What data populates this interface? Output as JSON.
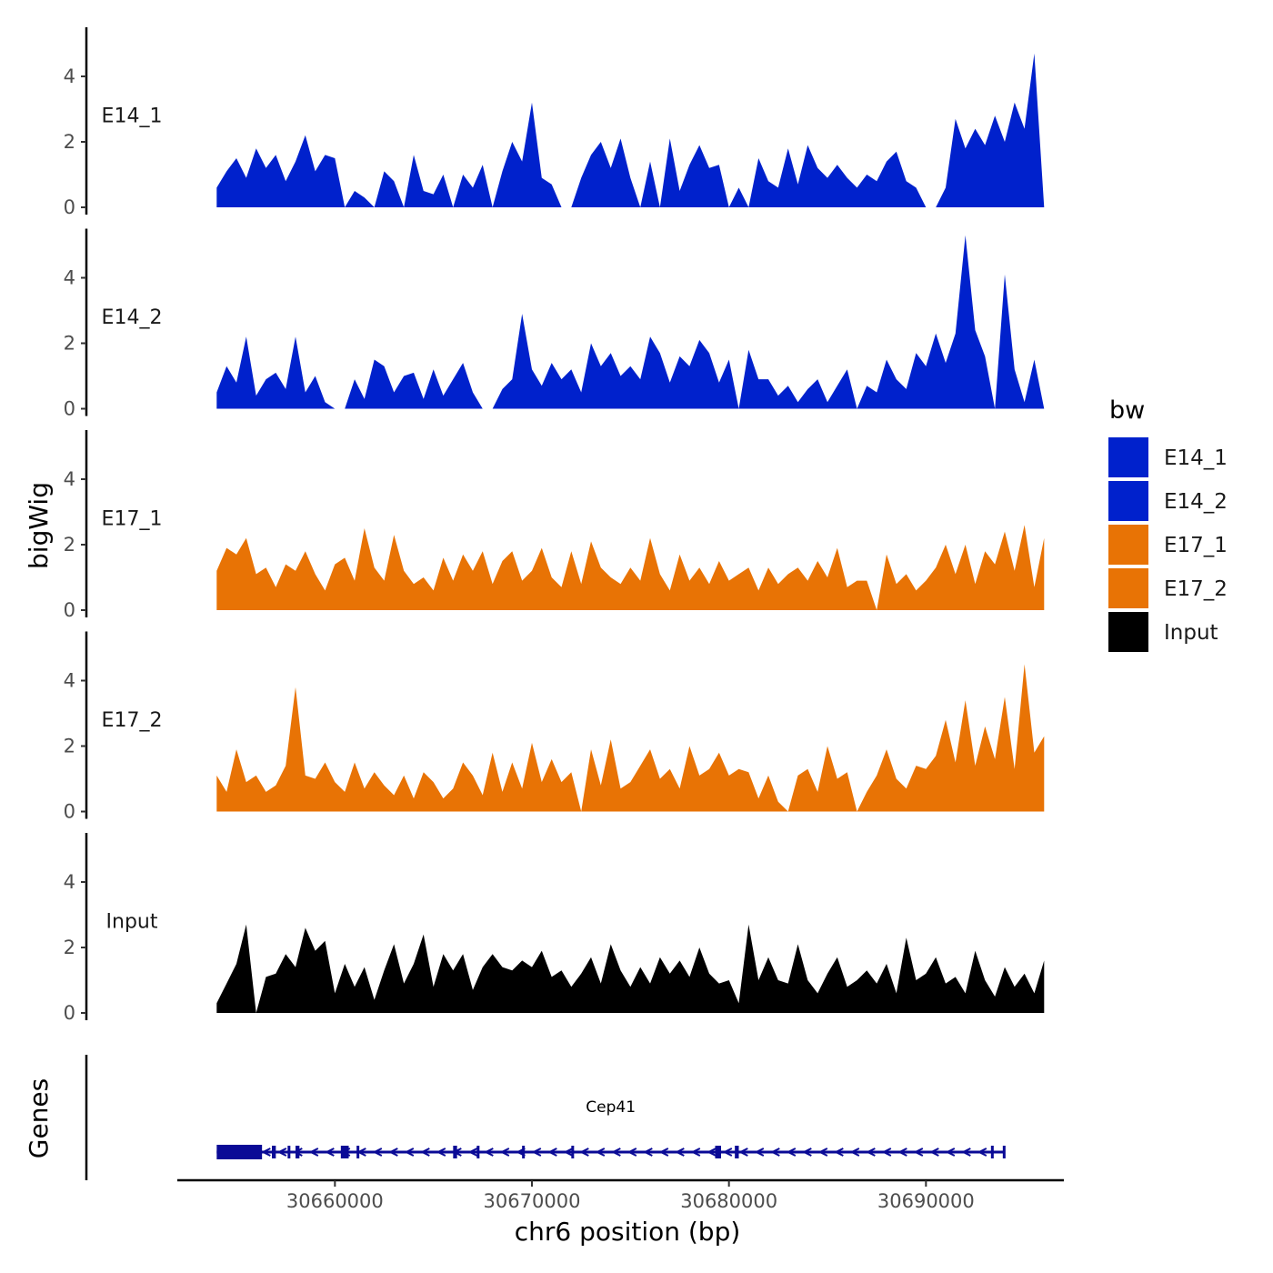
{
  "chart_data": {
    "type": "area",
    "title": "",
    "xlabel": "chr6 position (bp)",
    "ylabel": "bigWig",
    "gene_panel_label": "Genes",
    "xlim": [
      30652000,
      30697000
    ],
    "x_ticks": [
      30660000,
      30670000,
      30680000,
      30690000
    ],
    "x_tick_labels": [
      "30660000",
      "30670000",
      "30680000",
      "30690000"
    ],
    "ylim": [
      0,
      5.5
    ],
    "y_ticks": [
      0,
      2,
      4
    ],
    "y_tick_labels": [
      "0",
      "2",
      "4"
    ],
    "legend": {
      "title": "bw",
      "entries": [
        {
          "label": "E14_1",
          "color": "#0021CC"
        },
        {
          "label": "E14_2",
          "color": "#0021CC"
        },
        {
          "label": "E17_1",
          "color": "#E87305"
        },
        {
          "label": "E17_2",
          "color": "#E87305"
        },
        {
          "label": "Input",
          "color": "#000000"
        }
      ]
    },
    "x": [
      30654000,
      30654500,
      30655000,
      30655500,
      30656000,
      30656500,
      30657000,
      30657500,
      30658000,
      30658500,
      30659000,
      30659500,
      30660000,
      30660500,
      30661000,
      30661500,
      30662000,
      30662500,
      30663000,
      30663500,
      30664000,
      30664500,
      30665000,
      30665500,
      30666000,
      30666500,
      30667000,
      30667500,
      30668000,
      30668500,
      30669000,
      30669500,
      30670000,
      30670500,
      30671000,
      30671500,
      30672000,
      30672500,
      30673000,
      30673500,
      30674000,
      30674500,
      30675000,
      30675500,
      30676000,
      30676500,
      30677000,
      30677500,
      30678000,
      30678500,
      30679000,
      30679500,
      30680000,
      30680500,
      30681000,
      30681500,
      30682000,
      30682500,
      30683000,
      30683500,
      30684000,
      30684500,
      30685000,
      30685500,
      30686000,
      30686500,
      30687000,
      30687500,
      30688000,
      30688500,
      30689000,
      30689500,
      30690000,
      30690500,
      30691000,
      30691500,
      30692000,
      30692500,
      30693000,
      30693500,
      30694000,
      30694500,
      30695000,
      30695500,
      30696000
    ],
    "series": [
      {
        "name": "E14_1",
        "values": [
          0.6,
          1.1,
          1.5,
          0.9,
          1.8,
          1.2,
          1.6,
          0.8,
          1.4,
          2.2,
          1.1,
          1.6,
          1.5,
          0.0,
          0.5,
          0.3,
          0.0,
          1.1,
          0.8,
          0.0,
          1.6,
          0.5,
          0.4,
          1.0,
          0.0,
          1.0,
          0.6,
          1.3,
          0.0,
          1.1,
          2.0,
          1.4,
          3.2,
          0.9,
          0.7,
          0.0,
          0.0,
          0.9,
          1.6,
          2.0,
          1.2,
          2.1,
          0.9,
          0.0,
          1.4,
          0.0,
          2.1,
          0.5,
          1.3,
          1.9,
          1.2,
          1.3,
          0.0,
          0.6,
          0.0,
          1.5,
          0.8,
          0.6,
          1.8,
          0.7,
          1.9,
          1.2,
          0.9,
          1.3,
          0.9,
          0.6,
          1.0,
          0.8,
          1.4,
          1.7,
          0.8,
          0.6,
          0.0,
          0.0,
          0.6,
          2.7,
          1.8,
          2.4,
          1.9,
          2.8,
          2.0,
          3.2,
          2.4,
          4.7,
          0.0
        ]
      },
      {
        "name": "E14_2",
        "values": [
          0.5,
          1.3,
          0.8,
          2.2,
          0.4,
          0.9,
          1.1,
          0.6,
          2.2,
          0.5,
          1.0,
          0.2,
          0.0,
          0.0,
          0.9,
          0.3,
          1.5,
          1.3,
          0.5,
          1.0,
          1.1,
          0.3,
          1.2,
          0.4,
          0.9,
          1.4,
          0.5,
          0.0,
          0.0,
          0.6,
          0.9,
          2.9,
          1.2,
          0.7,
          1.4,
          0.9,
          1.2,
          0.5,
          2.0,
          1.3,
          1.7,
          1.0,
          1.3,
          0.9,
          2.2,
          1.7,
          0.8,
          1.6,
          1.3,
          2.1,
          1.7,
          0.8,
          1.5,
          0.0,
          1.8,
          0.9,
          0.9,
          0.4,
          0.7,
          0.2,
          0.6,
          0.9,
          0.2,
          0.7,
          1.2,
          0.0,
          0.7,
          0.5,
          1.5,
          0.9,
          0.6,
          1.7,
          1.3,
          2.3,
          1.4,
          2.3,
          5.3,
          2.4,
          1.6,
          0.0,
          4.1,
          1.2,
          0.2,
          1.5,
          0.0
        ]
      },
      {
        "name": "E17_1",
        "values": [
          1.2,
          1.9,
          1.7,
          2.2,
          1.1,
          1.3,
          0.7,
          1.4,
          1.2,
          1.8,
          1.1,
          0.6,
          1.4,
          1.6,
          0.9,
          2.5,
          1.3,
          0.9,
          2.3,
          1.2,
          0.8,
          1.0,
          0.6,
          1.6,
          0.9,
          1.7,
          1.2,
          1.8,
          0.8,
          1.5,
          1.8,
          0.9,
          1.2,
          1.9,
          1.0,
          0.7,
          1.8,
          0.8,
          2.1,
          1.3,
          1.0,
          0.8,
          1.3,
          0.9,
          2.2,
          1.1,
          0.6,
          1.7,
          0.9,
          1.3,
          0.8,
          1.5,
          0.9,
          1.1,
          1.3,
          0.6,
          1.3,
          0.8,
          1.1,
          1.3,
          0.9,
          1.5,
          1.0,
          1.9,
          0.7,
          0.9,
          0.9,
          0.0,
          1.7,
          0.8,
          1.1,
          0.6,
          0.9,
          1.3,
          2.0,
          1.1,
          2.0,
          0.8,
          1.8,
          1.4,
          2.4,
          1.2,
          2.6,
          0.7,
          2.2
        ]
      },
      {
        "name": "E17_2",
        "values": [
          1.1,
          0.6,
          1.9,
          0.9,
          1.1,
          0.6,
          0.8,
          1.4,
          3.8,
          1.1,
          1.0,
          1.5,
          0.9,
          0.6,
          1.5,
          0.7,
          1.2,
          0.8,
          0.5,
          1.1,
          0.4,
          1.2,
          0.9,
          0.4,
          0.7,
          1.5,
          1.1,
          0.5,
          1.8,
          0.6,
          1.5,
          0.7,
          2.1,
          0.9,
          1.6,
          0.9,
          1.2,
          0.0,
          1.9,
          0.8,
          2.2,
          0.7,
          0.9,
          1.4,
          1.9,
          1.0,
          1.3,
          0.7,
          2.0,
          1.1,
          1.3,
          1.8,
          1.1,
          1.3,
          1.2,
          0.4,
          1.1,
          0.3,
          0.0,
          1.1,
          1.3,
          0.6,
          2.0,
          1.0,
          1.2,
          0.0,
          0.6,
          1.1,
          1.9,
          1.0,
          0.7,
          1.4,
          1.3,
          1.7,
          2.8,
          1.5,
          3.4,
          1.4,
          2.6,
          1.6,
          3.5,
          1.3,
          4.5,
          1.8,
          2.3
        ]
      },
      {
        "name": "Input",
        "values": [
          0.3,
          0.9,
          1.5,
          2.7,
          0.0,
          1.1,
          1.2,
          1.8,
          1.4,
          2.6,
          1.9,
          2.2,
          0.6,
          1.5,
          0.8,
          1.4,
          0.4,
          1.3,
          2.1,
          0.9,
          1.5,
          2.4,
          0.8,
          1.8,
          1.3,
          1.8,
          0.7,
          1.4,
          1.8,
          1.4,
          1.3,
          1.6,
          1.4,
          1.9,
          1.1,
          1.3,
          0.8,
          1.2,
          1.7,
          0.9,
          2.1,
          1.3,
          0.8,
          1.4,
          0.9,
          1.7,
          1.2,
          1.6,
          1.1,
          2.0,
          1.2,
          0.9,
          1.0,
          0.3,
          2.7,
          1.0,
          1.7,
          1.0,
          0.9,
          2.1,
          1.0,
          0.6,
          1.2,
          1.7,
          0.8,
          1.0,
          1.3,
          0.9,
          1.5,
          0.6,
          2.3,
          1.0,
          1.2,
          1.7,
          0.9,
          1.1,
          0.6,
          1.9,
          1.0,
          0.5,
          1.4,
          0.8,
          1.2,
          0.6,
          1.6
        ]
      }
    ],
    "gene": {
      "name": "Cep41",
      "color": "#0A0A96",
      "start": 30654000,
      "end": 30694000,
      "strand": "-",
      "exons": [
        [
          30654000,
          30656300
        ],
        [
          30656800,
          30657000
        ],
        [
          30657600,
          30657700
        ],
        [
          30658000,
          30658200
        ],
        [
          30660300,
          30660700
        ],
        [
          30661100,
          30661200
        ],
        [
          30666000,
          30666200
        ],
        [
          30667200,
          30667300
        ],
        [
          30669500,
          30669600
        ],
        [
          30672000,
          30672100
        ],
        [
          30679300,
          30679600
        ],
        [
          30680300,
          30680500
        ],
        [
          30693300,
          30693400
        ],
        [
          30693900,
          30694000
        ]
      ]
    }
  }
}
